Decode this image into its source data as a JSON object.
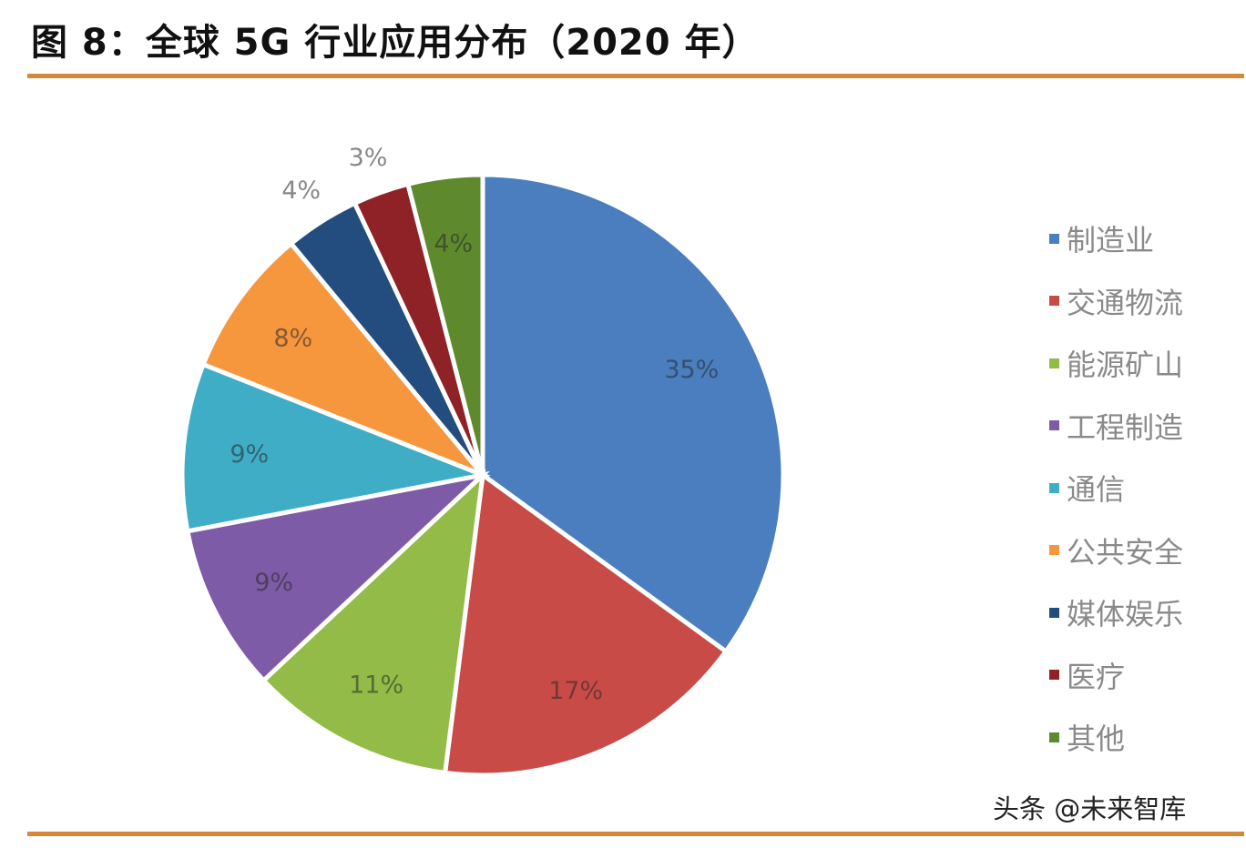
{
  "header": {
    "title": "图 8：全球 5G 行业应用分布（2020 年）"
  },
  "watermark": "头条 @未来智库",
  "colors": {
    "rule": "#d4893a"
  },
  "chart_data": {
    "type": "pie",
    "title": "图 8：全球 5G 行业应用分布（2020 年）",
    "start_angle": "12 o'clock, clockwise",
    "legend_position": "right",
    "categories": [
      "制造业",
      "交通物流",
      "能源矿山",
      "工程制造",
      "通信",
      "公共安全",
      "媒体娱乐",
      "医疗",
      "其他"
    ],
    "values": [
      35,
      17,
      11,
      9,
      9,
      8,
      4,
      3,
      4
    ],
    "labels": [
      "35%",
      "17%",
      "11%",
      "9%",
      "9%",
      "8%",
      "4%",
      "3%",
      "4%"
    ],
    "colors": [
      "#4a7ebf",
      "#c94b48",
      "#92bb48",
      "#7d5ba6",
      "#3fadc6",
      "#f6963d",
      "#234c7f",
      "#8e2227",
      "#5e8a2d"
    ]
  },
  "legend": {
    "items": [
      {
        "label": "制造业",
        "color": "#4a7ebf"
      },
      {
        "label": "交通物流",
        "color": "#c94b48"
      },
      {
        "label": "能源矿山",
        "color": "#92bb48"
      },
      {
        "label": "工程制造",
        "color": "#7d5ba6"
      },
      {
        "label": "通信",
        "color": "#3fadc6"
      },
      {
        "label": "公共安全",
        "color": "#f6963d"
      },
      {
        "label": "媒体娱乐",
        "color": "#234c7f"
      },
      {
        "label": "医疗",
        "color": "#8e2227"
      },
      {
        "label": "其他",
        "color": "#5e8a2d"
      }
    ]
  }
}
